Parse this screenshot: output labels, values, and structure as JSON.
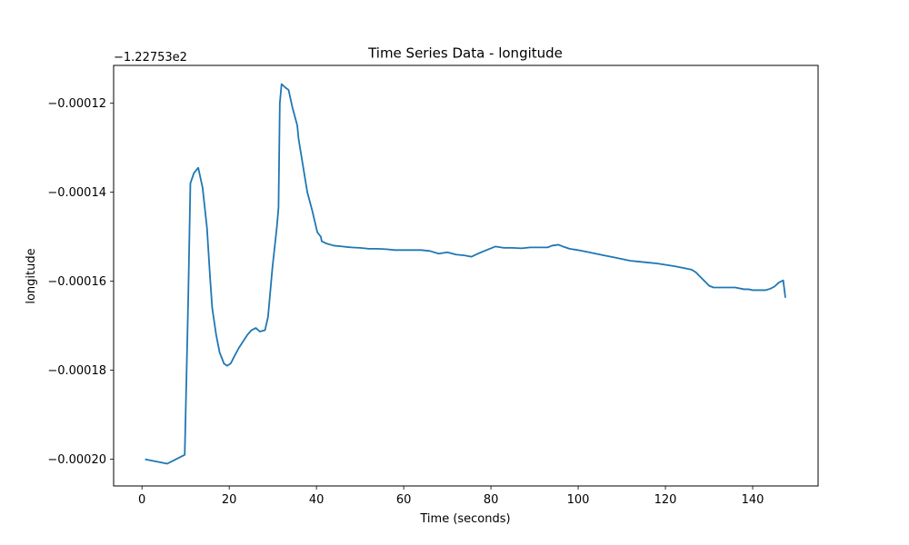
{
  "chart_data": {
    "type": "line",
    "title": "Time Series Data - longitude",
    "xlabel": "Time (seconds)",
    "ylabel": "longitude",
    "offset_label": "−1.22753e2",
    "xlim": [
      -6.5,
      155
    ],
    "ylim": [
      -0.000206,
      -0.0001115
    ],
    "x_ticks": [
      0,
      20,
      40,
      60,
      80,
      100,
      120,
      140
    ],
    "x_tick_labels": [
      "0",
      "20",
      "40",
      "60",
      "80",
      "100",
      "120",
      "140"
    ],
    "y_ticks": [
      -0.0002,
      -0.00018,
      -0.00016,
      -0.00014,
      -0.00012
    ],
    "y_tick_labels": [
      "−0.00020",
      "−0.00018",
      "−0.00016",
      "−0.00014",
      "−0.00012"
    ],
    "grid": false,
    "series": [
      {
        "color": "#1f77b4",
        "x": [
          0.7,
          5.8,
          9.8,
          10.6,
          11.1,
          11.9,
          12.9,
          13.9,
          14.9,
          15.6,
          16.1,
          17.0,
          17.8,
          18.8,
          19.5,
          20.3,
          20.6,
          21.1,
          22.2,
          23.2,
          24.2,
          25.1,
          26.1,
          27.0,
          28.2,
          28.9,
          29.9,
          30.9,
          31.3,
          31.6,
          32.0,
          32.9,
          33.6,
          34.5,
          35.6,
          35.9,
          36.9,
          37.9,
          39.0,
          40.2,
          41.0,
          41.2,
          42.2,
          44.0,
          46.0,
          48.0,
          50.0,
          52.0,
          54.0,
          56.0,
          58.0,
          60.0,
          62.0,
          64.0,
          66.0,
          68.0,
          70.0,
          72.0,
          74.0,
          75.5,
          77.0,
          79.0,
          81.0,
          83.0,
          85.0,
          87.0,
          89.0,
          91.0,
          93.0,
          94.0,
          95.5,
          96.5,
          98.0,
          100.0,
          102.0,
          104.0,
          106.0,
          108.0,
          110.0,
          112.0,
          114.0,
          116.0,
          118.0,
          120.0,
          122.0,
          124.0,
          126.0,
          127.0,
          128.0,
          129.0,
          130.0,
          131.0,
          132.0,
          134.0,
          136.0,
          138.0,
          139.0,
          140.0,
          142.0,
          143.0,
          144.0,
          145.0,
          146.0,
          147.0,
          147.5
        ],
        "y": [
          -0.0002,
          -0.000201,
          -0.000199,
          -0.000164,
          -0.000138,
          -0.0001357,
          -0.0001345,
          -0.000139,
          -0.000148,
          -0.000159,
          -0.000166,
          -0.000172,
          -0.000176,
          -0.0001785,
          -0.000179,
          -0.0001785,
          -0.000178,
          -0.000177,
          -0.000175,
          -0.0001735,
          -0.000172,
          -0.000171,
          -0.0001705,
          -0.0001713,
          -0.000171,
          -0.000168,
          -0.000157,
          -0.000148,
          -0.0001435,
          -0.00012,
          -0.0001157,
          -0.0001165,
          -0.000117,
          -0.000121,
          -0.000125,
          -0.000128,
          -0.000134,
          -0.00014,
          -0.000144,
          -0.000149,
          -0.00015,
          -0.000151,
          -0.0001515,
          -0.000152,
          -0.0001522,
          -0.0001524,
          -0.0001525,
          -0.0001527,
          -0.0001527,
          -0.0001528,
          -0.000153,
          -0.000153,
          -0.000153,
          -0.000153,
          -0.0001532,
          -0.0001538,
          -0.0001535,
          -0.000154,
          -0.0001542,
          -0.0001545,
          -0.0001538,
          -0.000153,
          -0.0001522,
          -0.0001525,
          -0.0001525,
          -0.0001526,
          -0.0001524,
          -0.0001524,
          -0.0001524,
          -0.000152,
          -0.0001518,
          -0.0001522,
          -0.0001527,
          -0.000153,
          -0.0001534,
          -0.0001538,
          -0.0001542,
          -0.0001546,
          -0.000155,
          -0.0001554,
          -0.0001556,
          -0.0001558,
          -0.000156,
          -0.0001563,
          -0.0001566,
          -0.000157,
          -0.0001574,
          -0.000158,
          -0.000159,
          -0.00016,
          -0.000161,
          -0.0001614,
          -0.0001614,
          -0.0001614,
          -0.0001614,
          -0.0001618,
          -0.0001618,
          -0.000162,
          -0.000162,
          -0.000162,
          -0.0001617,
          -0.0001612,
          -0.0001603,
          -0.0001598,
          -0.0001637
        ]
      }
    ]
  }
}
